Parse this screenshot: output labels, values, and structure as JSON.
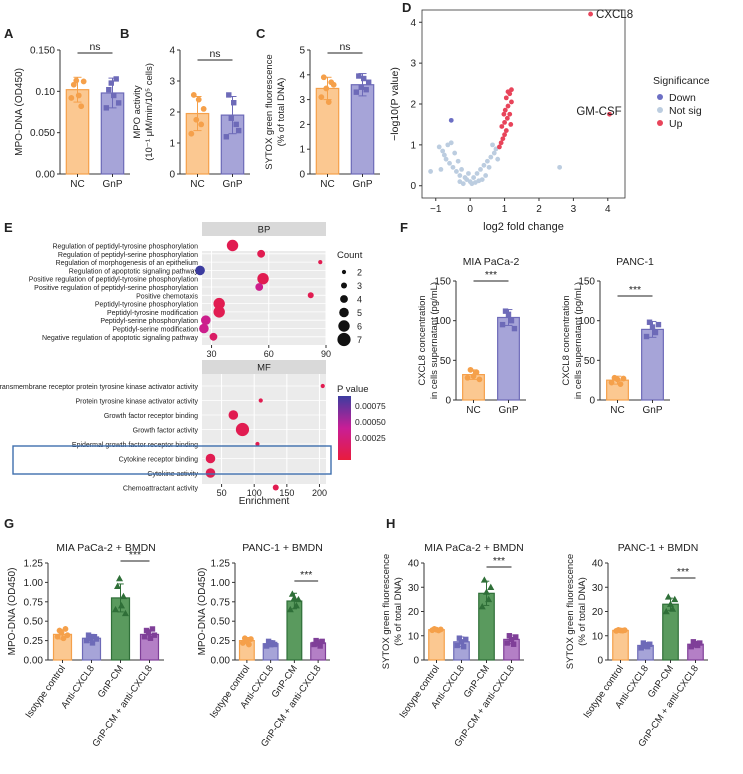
{
  "panel_labels": [
    "A",
    "B",
    "C",
    "D",
    "E",
    "F",
    "G",
    "H"
  ],
  "colors": {
    "nc_fill": "#fbc891",
    "nc_edge": "#f5a04a",
    "gnp_fill": "#a6a4d8",
    "gnp_edge": "#6d6ab8",
    "anti_fill": "#a6a4d8",
    "anti_edge": "#6d6ab8",
    "gcm_fill": "#5a9a5e",
    "gcm_edge": "#2f6f38",
    "combo_fill": "#b47fc6",
    "combo_edge": "#7f3f98",
    "volcano_up": "#e8445a",
    "volcano_down": "#6c6fc4",
    "volcano_ns": "#bccde0",
    "highlight_box": "#3f6fae"
  },
  "chart_data": [
    {
      "id": "A",
      "type": "bar",
      "ylabel": "MPO-DNA (OD450)",
      "categories": [
        "NC",
        "GnP"
      ],
      "values": [
        0.102,
        0.098
      ],
      "errors": [
        0.015,
        0.018
      ],
      "points": [
        [
          0.092,
          0.108,
          0.113,
          0.095,
          0.082,
          0.112
        ],
        [
          0.08,
          0.102,
          0.11,
          0.095,
          0.115,
          0.086
        ]
      ],
      "ylim": [
        0,
        0.15
      ],
      "yticks": [
        "0.00",
        "0.050",
        "0.10",
        "0.150"
      ],
      "sig": "ns"
    },
    {
      "id": "B",
      "type": "bar",
      "ylabel_line1": "MPO activity",
      "ylabel_line2": "(10⁻¹ μM/min/10⁵ cells)",
      "categories": [
        "NC",
        "GnP"
      ],
      "values": [
        1.95,
        1.9
      ],
      "errors": [
        0.55,
        0.6
      ],
      "points": [
        [
          1.3,
          2.55,
          1.75,
          2.4,
          1.6,
          2.1
        ],
        [
          1.2,
          2.55,
          1.8,
          2.3,
          1.6,
          1.4
        ]
      ],
      "ylim": [
        0,
        4
      ],
      "yticks": [
        "0",
        "1",
        "2",
        "3",
        "4"
      ],
      "sig": "ns"
    },
    {
      "id": "C",
      "type": "bar",
      "ylabel_line1": "SYTOX green fluorescence",
      "ylabel_line2": "(% of total DNA)",
      "categories": [
        "NC",
        "GnP"
      ],
      "values": [
        3.45,
        3.6
      ],
      "errors": [
        0.45,
        0.45
      ],
      "points": [
        [
          3.1,
          3.9,
          3.45,
          2.9,
          3.7,
          3.6
        ],
        [
          3.3,
          3.95,
          3.5,
          3.85,
          3.4,
          3.7
        ]
      ],
      "ylim": [
        0,
        5
      ],
      "yticks": [
        "0",
        "1",
        "2",
        "3",
        "4",
        "5"
      ],
      "sig": "ns"
    },
    {
      "id": "D",
      "type": "scatter",
      "xlabel": "log2 fold change",
      "ylabel": "−log10(P value)",
      "xlim": [
        -1.4,
        4.5
      ],
      "ylim": [
        -0.3,
        4.3
      ],
      "xticks": [
        "−1",
        "0",
        "1",
        "2",
        "3",
        "4"
      ],
      "yticks": [
        "0",
        "1",
        "2",
        "3",
        "4"
      ],
      "labels": [
        {
          "text": "CXCL8",
          "x": 3.5,
          "y": 4.2
        },
        {
          "text": "GM-CSF",
          "x": 4.05,
          "y": 1.75
        }
      ],
      "legend_title": "Significance",
      "legend_items": [
        "Down",
        "Not sig",
        "Up"
      ],
      "up": [
        [
          3.5,
          4.2
        ],
        [
          4.05,
          1.75
        ],
        [
          0.85,
          0.95
        ],
        [
          0.9,
          1.05
        ],
        [
          0.95,
          1.15
        ],
        [
          1.0,
          1.25
        ],
        [
          1.05,
          1.35
        ],
        [
          0.92,
          1.45
        ],
        [
          1.0,
          1.55
        ],
        [
          1.08,
          1.65
        ],
        [
          1.15,
          1.75
        ],
        [
          1.02,
          1.85
        ],
        [
          1.1,
          1.95
        ],
        [
          1.2,
          2.05
        ],
        [
          1.05,
          2.15
        ],
        [
          1.15,
          2.25
        ],
        [
          1.2,
          2.35
        ],
        [
          1.1,
          2.3
        ],
        [
          0.98,
          1.75
        ],
        [
          1.18,
          1.5
        ]
      ],
      "down": [
        [
          -0.55,
          1.6
        ]
      ],
      "ns": [
        [
          -0.2,
          0.05
        ],
        [
          -0.1,
          0.15
        ],
        [
          0.0,
          0.1
        ],
        [
          0.1,
          0.2
        ],
        [
          -0.3,
          0.25
        ],
        [
          -0.4,
          0.35
        ],
        [
          -0.5,
          0.45
        ],
        [
          -0.6,
          0.55
        ],
        [
          -0.7,
          0.65
        ],
        [
          -0.75,
          0.75
        ],
        [
          -0.8,
          0.85
        ],
        [
          -0.9,
          0.95
        ],
        [
          -0.65,
          1.0
        ],
        [
          -0.55,
          1.05
        ],
        [
          -0.45,
          0.8
        ],
        [
          -0.35,
          0.6
        ],
        [
          -0.25,
          0.4
        ],
        [
          -0.15,
          0.2
        ],
        [
          0.05,
          0.05
        ],
        [
          0.2,
          0.3
        ],
        [
          0.3,
          0.4
        ],
        [
          0.4,
          0.5
        ],
        [
          0.5,
          0.6
        ],
        [
          0.6,
          0.7
        ],
        [
          0.7,
          0.8
        ],
        [
          0.75,
          0.9
        ],
        [
          0.8,
          0.65
        ],
        [
          0.55,
          0.45
        ],
        [
          0.45,
          0.25
        ],
        [
          0.35,
          0.15
        ],
        [
          -0.05,
          0.3
        ],
        [
          -1.15,
          0.35
        ],
        [
          2.6,
          0.45
        ],
        [
          -0.85,
          0.4
        ],
        [
          0.65,
          1.0
        ],
        [
          -0.3,
          0.1
        ],
        [
          0.15,
          0.08
        ],
        [
          0.25,
          0.12
        ]
      ]
    },
    {
      "id": "E",
      "type": "dotplot",
      "xlabel": "Enrichment",
      "bp": {
        "title": "BP",
        "xlim": [
          25,
          90
        ],
        "xticks": [
          "30",
          "60",
          "90"
        ],
        "terms": [
          "Regulation of peptidyl-tyrosine phosphorylation",
          "Regulation of peptidyl-serine phosphorylation",
          "Regulation of morphogenesis of an epithelium",
          "Regulation of apoptotic signaling pathway",
          "Positive regulation of peptidyl-tyrosine phosphorylation",
          "Positive regulation of peptidyl-serine phosphorylation",
          "Positive chemotaxis",
          "Peptidyl-tyrosine phosphorylation",
          "Peptidyl-tyrosine modification",
          "Peptidyl-serine phosphorylation",
          "Peptidyl-serine modification",
          "Negative regulation of apoptotic signaling pathway"
        ],
        "x": [
          41,
          56,
          87,
          24,
          57,
          55,
          82,
          34,
          34,
          27,
          26,
          31
        ],
        "count": [
          6,
          4,
          2,
          5,
          6,
          4,
          3,
          6,
          6,
          5,
          5,
          4
        ],
        "p": [
          0.0001,
          0.0001,
          0.0001,
          0.0009,
          0.0001,
          0.0004,
          0.0001,
          0.0001,
          0.0001,
          0.0004,
          0.0004,
          0.0002
        ]
      },
      "mf": {
        "title": "MF",
        "xlim": [
          20,
          210
        ],
        "xticks": [
          "50",
          "100",
          "150",
          "200"
        ],
        "terms": [
          "Transmembrane receptor protein tyrosine kinase activator activity",
          "Protein tyrosine kinase activator activity",
          "Growth factor receptor binding",
          "Growth factor activity",
          "Epidermal growth factor receptor binding",
          "Cytokine receptor binding",
          "Cytokine activity",
          "Chemoattractant activity"
        ],
        "x": [
          205,
          110,
          68,
          82,
          105,
          33,
          33,
          133
        ],
        "count": [
          2,
          2,
          5,
          7,
          2,
          5,
          5,
          3
        ],
        "p": [
          0.0001,
          0.0001,
          0.0001,
          0.0001,
          0.0001,
          0.0001,
          0.0001,
          0.0001
        ],
        "highlight": [
          "Cytokine receptor binding",
          "Cytokine activity"
        ]
      },
      "size_legend_title": "Count",
      "size_legend": [
        "2",
        "3",
        "4",
        "5",
        "6",
        "7"
      ],
      "color_legend_title": "P value",
      "color_legend": [
        "0.00075",
        "0.00050",
        "0.00025"
      ]
    },
    {
      "id": "F1",
      "type": "bar",
      "title": "MIA PaCa-2",
      "ylabel_line1": "CXCL8 concentration",
      "ylabel_line2": "in cells supernatant (pg/mL)",
      "categories": [
        "NC",
        "GnP"
      ],
      "values": [
        32,
        104
      ],
      "errors": [
        6,
        10
      ],
      "points": [
        [
          28,
          38,
          30,
          35,
          26
        ],
        [
          95,
          112,
          108,
          100,
          90
        ]
      ],
      "ylim": [
        0,
        150
      ],
      "yticks": [
        "0",
        "50",
        "100",
        "150"
      ],
      "sig": "***"
    },
    {
      "id": "F2",
      "type": "bar",
      "title": "PANC-1",
      "ylabel_line1": "CXCL8 concentration",
      "ylabel_line2": "in cells supernatant (pg/mL)",
      "categories": [
        "NC",
        "GnP"
      ],
      "values": [
        25,
        89
      ],
      "errors": [
        5,
        10
      ],
      "points": [
        [
          22,
          28,
          26,
          20,
          27
        ],
        [
          80,
          98,
          92,
          85,
          95
        ]
      ],
      "ylim": [
        0,
        150
      ],
      "yticks": [
        "0",
        "50",
        "100",
        "150"
      ],
      "sig": "***"
    },
    {
      "id": "G1",
      "type": "bar",
      "title": "MIA PaCa-2 + BMDN",
      "ylabel": "MPO-DNA (OD450)",
      "categories": [
        "Isotype control",
        "Anti-CXCL8",
        "GnP-CM",
        "GnP-CM + anti-CXCL8"
      ],
      "values": [
        0.33,
        0.28,
        0.8,
        0.33
      ],
      "errors": [
        0.06,
        0.05,
        0.18,
        0.06
      ],
      "points": [
        [
          0.3,
          0.38,
          0.35,
          0.28,
          0.4,
          0.32
        ],
        [
          0.25,
          0.32,
          0.28,
          0.22,
          0.3,
          0.27
        ],
        [
          0.65,
          0.95,
          1.05,
          0.7,
          0.82,
          0.6
        ],
        [
          0.3,
          0.38,
          0.35,
          0.28,
          0.4,
          0.32
        ]
      ],
      "ylim": [
        0,
        1.25
      ],
      "yticks": [
        "0.00",
        "0.25",
        "0.50",
        "0.75",
        "1.00",
        "1.25"
      ],
      "sig": "***"
    },
    {
      "id": "G2",
      "type": "bar",
      "title": "PANC-1 + BMDN",
      "ylabel": "MPO-DNA (OD450)",
      "categories": [
        "Isotype control",
        "Anti-CXCL8",
        "GnP-CM",
        "GnP-CM + anti-CXCL8"
      ],
      "values": [
        0.25,
        0.21,
        0.76,
        0.22
      ],
      "errors": [
        0.04,
        0.04,
        0.1,
        0.04
      ],
      "points": [
        [
          0.22,
          0.28,
          0.25,
          0.2,
          0.27
        ],
        [
          0.18,
          0.24,
          0.2,
          0.22,
          0.2
        ],
        [
          0.65,
          0.85,
          0.8,
          0.7,
          0.78
        ],
        [
          0.2,
          0.25,
          0.22,
          0.18,
          0.24
        ]
      ],
      "ylim": [
        0,
        1.25
      ],
      "yticks": [
        "0.00",
        "0.25",
        "0.50",
        "0.75",
        "1.00",
        "1.25"
      ],
      "sig": "***"
    },
    {
      "id": "H1",
      "type": "bar",
      "title": "MIA PaCa-2 + BMDN",
      "ylabel_line1": "SYTOX green fluorescence",
      "ylabel_line2": "(% of total DNA)",
      "categories": [
        "Isotype control",
        "Anti-CXCL8",
        "GnP-CM",
        "GnP-CM + anti-CXCL8"
      ],
      "values": [
        12.5,
        7.5,
        27.5,
        8.5
      ],
      "errors": [
        0.5,
        2.0,
        5.0,
        1.8
      ],
      "points": [
        [
          12.3,
          12.8,
          12.5,
          12.2,
          12.6
        ],
        [
          6,
          9,
          7.5,
          5.5,
          8.5
        ],
        [
          22,
          33,
          28,
          25,
          30
        ],
        [
          7,
          10,
          8.5,
          6.5,
          9.5
        ]
      ],
      "ylim": [
        0,
        40
      ],
      "yticks": [
        "0",
        "10",
        "20",
        "30",
        "40"
      ],
      "sig": "***"
    },
    {
      "id": "H2",
      "type": "bar",
      "title": "PANC-1 + BMDN",
      "ylabel_line1": "SYTOX green fluorescence",
      "ylabel_line2": "(% of total DNA)",
      "categories": [
        "Isotype control",
        "Anti-CXCL8",
        "GnP-CM",
        "GnP-CM + anti-CXCL8"
      ],
      "values": [
        12.2,
        6.0,
        23.0,
        6.5
      ],
      "errors": [
        0.3,
        1.2,
        2.5,
        1.2
      ],
      "points": [
        [
          12.0,
          12.4,
          12.2,
          12.1,
          12.3
        ],
        [
          5,
          7,
          6,
          5.5,
          6.5
        ],
        [
          20,
          26,
          23,
          21,
          25
        ],
        [
          5.5,
          7.5,
          6.5,
          6,
          7
        ]
      ],
      "ylim": [
        0,
        40
      ],
      "yticks": [
        "0",
        "10",
        "20",
        "30",
        "40"
      ],
      "sig": "***"
    }
  ]
}
